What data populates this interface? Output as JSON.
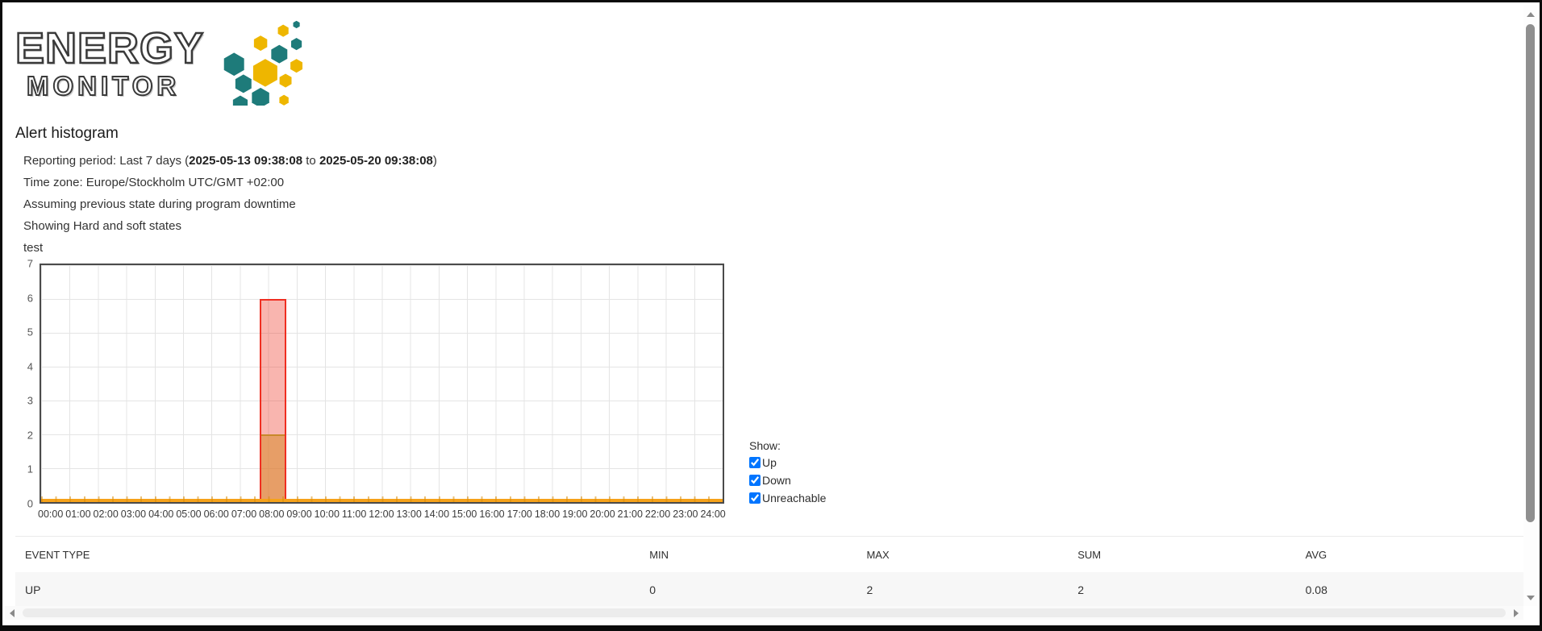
{
  "logo": {
    "line1": "ENERGY",
    "line2": "MONITOR",
    "icon": "hexagon-cluster",
    "colors": {
      "teal": "#1e7b7a",
      "yellow": "#eeb600"
    }
  },
  "page": {
    "title": "Alert histogram"
  },
  "report_info": {
    "reporting_prefix": "Reporting period: Last 7 days (",
    "reporting_start": "2025-05-13 09:38:08",
    "reporting_joiner": " to ",
    "reporting_end": "2025-05-20 09:38:08",
    "reporting_suffix": ")",
    "timezone": "Time zone: Europe/Stockholm UTC/GMT +02:00",
    "downtime_assumption": "Assuming previous state during program downtime",
    "states_shown": "Showing Hard and soft states",
    "object_name": "test"
  },
  "chart_data": {
    "type": "bar",
    "title": "test",
    "xlabel": "",
    "ylabel": "",
    "x_ticks": [
      "00:00",
      "01:00",
      "02:00",
      "03:00",
      "04:00",
      "05:00",
      "06:00",
      "07:00",
      "08:00",
      "09:00",
      "10:00",
      "11:00",
      "12:00",
      "13:00",
      "14:00",
      "15:00",
      "16:00",
      "17:00",
      "18:00",
      "19:00",
      "20:00",
      "21:00",
      "22:00",
      "23:00",
      "24:00"
    ],
    "y_ticks": [
      0,
      1,
      2,
      3,
      4,
      5,
      6,
      7
    ],
    "ylim": [
      0,
      7
    ],
    "grid": true,
    "legend_position": "right",
    "baseline_color": "#f6a21a",
    "series": [
      {
        "name": "Down",
        "color": "#ef2e21",
        "fill": "#f9aba5",
        "values": [
          0,
          0,
          0,
          0,
          0,
          0,
          0,
          0,
          6,
          0,
          0,
          0,
          0,
          0,
          0,
          0,
          0,
          0,
          0,
          0,
          0,
          0,
          0,
          0
        ]
      },
      {
        "name": "Up",
        "color": "#d0861f",
        "fill": "#dfa377",
        "values": [
          0,
          0,
          0,
          0,
          0,
          0,
          0,
          0,
          2,
          0,
          0,
          0,
          0,
          0,
          0,
          0,
          0,
          0,
          0,
          0,
          0,
          0,
          0,
          0
        ]
      },
      {
        "name": "Unreachable",
        "values": [
          0,
          0,
          0,
          0,
          0,
          0,
          0,
          0,
          0,
          0,
          0,
          0,
          0,
          0,
          0,
          0,
          0,
          0,
          0,
          0,
          0,
          0,
          0,
          0
        ]
      }
    ]
  },
  "legend": {
    "label": "Show:",
    "items": [
      {
        "label": "Up",
        "checked": true
      },
      {
        "label": "Down",
        "checked": true
      },
      {
        "label": "Unreachable",
        "checked": true
      }
    ]
  },
  "table": {
    "columns": [
      "EVENT TYPE",
      "MIN",
      "MAX",
      "SUM",
      "AVG"
    ],
    "rows": [
      [
        "UP",
        "0",
        "2",
        "2",
        "0.08"
      ]
    ]
  }
}
